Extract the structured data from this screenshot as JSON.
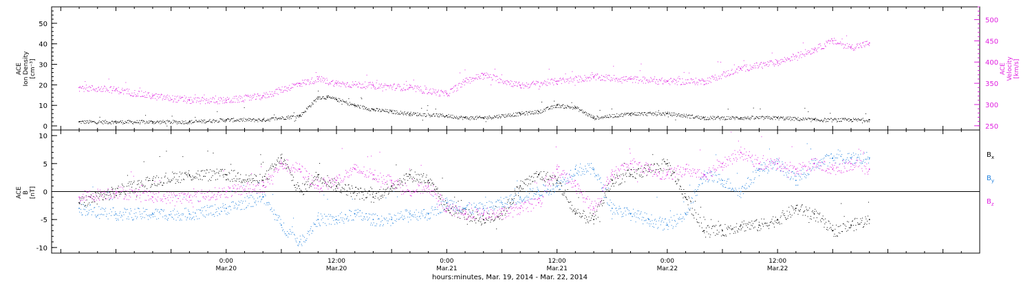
{
  "chart_data": [
    {
      "type": "scatter",
      "panel": "plasma",
      "ylabel_lines": [
        "ACE",
        "Ion Density",
        "[cm⁻³]"
      ],
      "y2label_lines": [
        "ACE",
        "Velocity",
        "[km/s]"
      ],
      "ylim": [
        -2,
        58
      ],
      "yticks": [
        0,
        10,
        20,
        30,
        40,
        50
      ],
      "y2lim": [
        240,
        530
      ],
      "y2ticks": [
        250,
        300,
        350,
        400,
        450,
        500
      ],
      "colors": {
        "density": "#000000",
        "velocity": "#e020e0"
      },
      "series": [
        {
          "key": "density",
          "axis": "left",
          "x_hours": [
            -16,
            -12,
            -8,
            -4,
            0,
            4,
            8,
            10,
            11,
            12,
            14,
            16,
            18,
            20,
            24,
            26,
            28,
            32,
            34,
            36,
            38,
            40,
            44,
            48,
            52,
            56,
            60,
            64,
            68,
            70
          ],
          "values": [
            2,
            2,
            2,
            2,
            3,
            3,
            5,
            14,
            14,
            13,
            10,
            8,
            7,
            6,
            5,
            4,
            4,
            6,
            7,
            10,
            9,
            4,
            6,
            6,
            4,
            4,
            4,
            3,
            3,
            3
          ]
        },
        {
          "key": "velocity",
          "axis": "right",
          "x_hours": [
            -16,
            -12,
            -8,
            -4,
            0,
            4,
            8,
            10,
            12,
            16,
            20,
            24,
            26,
            28,
            32,
            36,
            40,
            44,
            48,
            52,
            56,
            60,
            64,
            66,
            68,
            70
          ],
          "values": [
            340,
            335,
            320,
            310,
            310,
            320,
            350,
            360,
            350,
            345,
            340,
            325,
            355,
            370,
            345,
            355,
            365,
            360,
            355,
            355,
            385,
            400,
            430,
            450,
            435,
            445
          ]
        }
      ]
    },
    {
      "type": "scatter",
      "panel": "magnetic",
      "ylabel_lines": [
        "ACE",
        "B",
        "[nT]"
      ],
      "ylim": [
        -11,
        11
      ],
      "yticks": [
        -10,
        -5,
        0,
        5,
        10
      ],
      "colors": {
        "bx": "#000000",
        "by": "#2080dd",
        "bz": "#e020e0"
      },
      "legend": [
        {
          "key": "bx",
          "label": "B",
          "sub": "x"
        },
        {
          "key": "by",
          "label": "B",
          "sub": "y"
        },
        {
          "key": "bz",
          "label": "B",
          "sub": "z"
        }
      ],
      "series": [
        {
          "key": "bx",
          "x_hours": [
            -16,
            -12,
            -8,
            -4,
            0,
            4,
            6,
            8,
            10,
            12,
            14,
            16,
            18,
            20,
            22,
            24,
            26,
            28,
            30,
            32,
            34,
            36,
            38,
            40,
            42,
            44,
            46,
            48,
            50,
            52,
            54,
            56,
            58,
            60,
            62,
            64,
            66,
            68,
            70
          ],
          "values": [
            -2,
            0,
            2,
            3,
            3,
            2,
            6,
            0,
            3,
            1,
            0,
            -1,
            1,
            3,
            2,
            -3,
            -4,
            -5,
            -4,
            1,
            3,
            2,
            -4,
            -5,
            2,
            3,
            4,
            5,
            -1,
            -7,
            -7,
            -6,
            -6,
            -5,
            -3,
            -4,
            -7,
            -6,
            -5
          ]
        },
        {
          "key": "by",
          "x_hours": [
            -16,
            -12,
            -8,
            -4,
            0,
            4,
            6,
            8,
            10,
            12,
            14,
            16,
            18,
            20,
            22,
            24,
            26,
            28,
            30,
            32,
            34,
            36,
            38,
            40,
            42,
            44,
            46,
            48,
            50,
            52,
            54,
            56,
            58,
            60,
            62,
            64,
            66,
            68,
            70
          ],
          "values": [
            -3,
            -4,
            -4,
            -4,
            -3,
            -1,
            -6,
            -9,
            -5,
            -5,
            -4,
            -5,
            -5,
            -4,
            -4,
            -2,
            -3,
            -3,
            -2,
            -1,
            0,
            1,
            4,
            4,
            -3,
            -4,
            -5,
            -6,
            -4,
            3,
            2,
            0,
            4,
            5,
            2,
            5,
            6,
            6,
            6
          ]
        },
        {
          "key": "bz",
          "x_hours": [
            -16,
            -12,
            -8,
            -4,
            0,
            4,
            6,
            8,
            10,
            12,
            14,
            16,
            18,
            20,
            22,
            24,
            26,
            28,
            30,
            32,
            34,
            36,
            38,
            40,
            42,
            44,
            46,
            48,
            50,
            52,
            54,
            56,
            58,
            60,
            62,
            64,
            66,
            68,
            70
          ],
          "values": [
            -1,
            0,
            -1,
            -1,
            0,
            1,
            5,
            4,
            1,
            2,
            4,
            3,
            2,
            0,
            1,
            -3,
            -4,
            -4,
            -4,
            -3,
            -2,
            4,
            1,
            -3,
            3,
            5,
            4,
            3,
            4,
            3,
            5,
            7,
            5,
            5,
            4,
            5,
            4,
            5,
            4
          ]
        }
      ]
    }
  ],
  "x_axis": {
    "xlim_hours": [
      -19,
      82
    ],
    "tick_labels": [
      {
        "hours": 0,
        "time": "0:00",
        "date": "Mar.20"
      },
      {
        "hours": 12,
        "time": "12:00",
        "date": "Mar.20"
      },
      {
        "hours": 24,
        "time": "0:00",
        "date": "Mar.21"
      },
      {
        "hours": 36,
        "time": "12:00",
        "date": "Mar.21"
      },
      {
        "hours": 48,
        "time": "0:00",
        "date": "Mar.22"
      },
      {
        "hours": 60,
        "time": "12:00",
        "date": "Mar.22"
      }
    ],
    "xlabel": "hours:minutes, Mar. 19, 2014 - Mar. 22, 2014"
  }
}
